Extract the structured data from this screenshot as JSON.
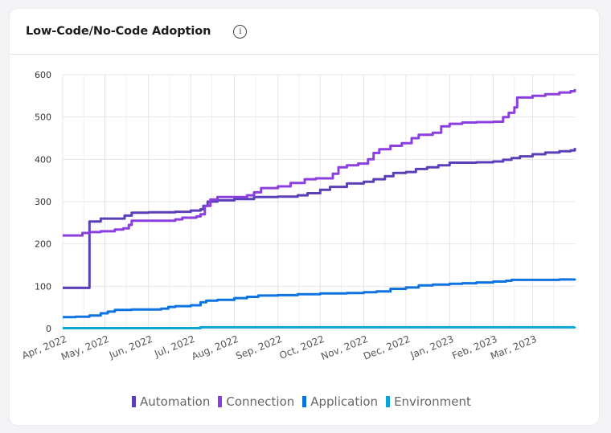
{
  "card": {
    "title": "Low-Code/No-Code Adoption",
    "info_icon": "info-circle-icon"
  },
  "chart_data": {
    "type": "line",
    "step": true,
    "x_start": "2022-04-01",
    "x_end": "2023-03-31",
    "x_tick_labels": [
      "Apr, 2022",
      "May, 2022",
      "Jun, 2022",
      "Jul, 2022",
      "Aug, 2022",
      "Sep, 2022",
      "Oct, 2022",
      "Nov, 2022",
      "Dec, 2022",
      "Jan, 2023",
      "Feb, 2023",
      "Mar, 2023"
    ],
    "ylim": [
      0,
      600
    ],
    "yticks": [
      0,
      100,
      200,
      300,
      400,
      500,
      600
    ],
    "grid": true,
    "legend_position": "bottom",
    "series": [
      {
        "name": "Automation",
        "color": "#5b3fb8",
        "points": [
          [
            "2022-04-01",
            96
          ],
          [
            "2022-04-20",
            96
          ],
          [
            "2022-04-20",
            253
          ],
          [
            "2022-04-28",
            260
          ],
          [
            "2022-05-15",
            267
          ],
          [
            "2022-05-20",
            274
          ],
          [
            "2022-06-01",
            275
          ],
          [
            "2022-06-20",
            276
          ],
          [
            "2022-07-01",
            279
          ],
          [
            "2022-07-08",
            282
          ],
          [
            "2022-07-10",
            290
          ],
          [
            "2022-07-13",
            300
          ],
          [
            "2022-07-20",
            303
          ],
          [
            "2022-08-01",
            306
          ],
          [
            "2022-08-15",
            311
          ],
          [
            "2022-09-01",
            312
          ],
          [
            "2022-09-15",
            315
          ],
          [
            "2022-09-22",
            320
          ],
          [
            "2022-10-01",
            328
          ],
          [
            "2022-10-08",
            335
          ],
          [
            "2022-10-20",
            343
          ],
          [
            "2022-11-01",
            347
          ],
          [
            "2022-11-08",
            353
          ],
          [
            "2022-11-16",
            360
          ],
          [
            "2022-11-22",
            368
          ],
          [
            "2022-12-01",
            370
          ],
          [
            "2022-12-08",
            377
          ],
          [
            "2022-12-16",
            381
          ],
          [
            "2022-12-24",
            386
          ],
          [
            "2023-01-01",
            392
          ],
          [
            "2023-01-20",
            393
          ],
          [
            "2023-02-01",
            395
          ],
          [
            "2023-02-08",
            399
          ],
          [
            "2023-02-14",
            403
          ],
          [
            "2023-02-20",
            407
          ],
          [
            "2023-03-01",
            412
          ],
          [
            "2023-03-10",
            416
          ],
          [
            "2023-03-20",
            419
          ],
          [
            "2023-03-28",
            421
          ],
          [
            "2023-03-31",
            427
          ]
        ]
      },
      {
        "name": "Connection",
        "color": "#8b3fe0",
        "points": [
          [
            "2022-04-01",
            220
          ],
          [
            "2022-04-13",
            220
          ],
          [
            "2022-04-15",
            226
          ],
          [
            "2022-04-20",
            228
          ],
          [
            "2022-04-28",
            230
          ],
          [
            "2022-05-08",
            234
          ],
          [
            "2022-05-14",
            237
          ],
          [
            "2022-05-18",
            245
          ],
          [
            "2022-05-20",
            255
          ],
          [
            "2022-06-15",
            255
          ],
          [
            "2022-06-20",
            258
          ],
          [
            "2022-06-25",
            262
          ],
          [
            "2022-07-05",
            265
          ],
          [
            "2022-07-08",
            270
          ],
          [
            "2022-07-11",
            290
          ],
          [
            "2022-07-15",
            305
          ],
          [
            "2022-07-20",
            311
          ],
          [
            "2022-08-10",
            315
          ],
          [
            "2022-08-15",
            322
          ],
          [
            "2022-08-20",
            332
          ],
          [
            "2022-09-01",
            336
          ],
          [
            "2022-09-10",
            344
          ],
          [
            "2022-09-20",
            353
          ],
          [
            "2022-09-28",
            355
          ],
          [
            "2022-10-10",
            366
          ],
          [
            "2022-10-14",
            381
          ],
          [
            "2022-10-20",
            386
          ],
          [
            "2022-10-28",
            390
          ],
          [
            "2022-11-04",
            400
          ],
          [
            "2022-11-08",
            415
          ],
          [
            "2022-11-12",
            424
          ],
          [
            "2022-11-20",
            432
          ],
          [
            "2022-11-28",
            438
          ],
          [
            "2022-12-05",
            450
          ],
          [
            "2022-12-10",
            458
          ],
          [
            "2022-12-20",
            463
          ],
          [
            "2022-12-26",
            478
          ],
          [
            "2023-01-01",
            484
          ],
          [
            "2023-01-10",
            487
          ],
          [
            "2023-01-20",
            488
          ],
          [
            "2023-02-01",
            489
          ],
          [
            "2023-02-08",
            500
          ],
          [
            "2023-02-12",
            510
          ],
          [
            "2023-02-16",
            523
          ],
          [
            "2023-02-18",
            546
          ],
          [
            "2023-03-01",
            550
          ],
          [
            "2023-03-10",
            554
          ],
          [
            "2023-03-20",
            558
          ],
          [
            "2023-03-28",
            561
          ],
          [
            "2023-03-31",
            566
          ]
        ]
      },
      {
        "name": "Application",
        "color": "#0d73e0",
        "points": [
          [
            "2022-04-01",
            27
          ],
          [
            "2022-04-10",
            28
          ],
          [
            "2022-04-20",
            31
          ],
          [
            "2022-04-28",
            36
          ],
          [
            "2022-05-03",
            40
          ],
          [
            "2022-05-08",
            44
          ],
          [
            "2022-05-20",
            45
          ],
          [
            "2022-06-10",
            47
          ],
          [
            "2022-06-15",
            51
          ],
          [
            "2022-06-20",
            53
          ],
          [
            "2022-07-01",
            55
          ],
          [
            "2022-07-08",
            62
          ],
          [
            "2022-07-12",
            66
          ],
          [
            "2022-07-20",
            68
          ],
          [
            "2022-08-01",
            72
          ],
          [
            "2022-08-10",
            75
          ],
          [
            "2022-08-18",
            78
          ],
          [
            "2022-09-01",
            79
          ],
          [
            "2022-09-15",
            81
          ],
          [
            "2022-10-01",
            83
          ],
          [
            "2022-10-20",
            84
          ],
          [
            "2022-11-01",
            86
          ],
          [
            "2022-11-10",
            88
          ],
          [
            "2022-11-20",
            94
          ],
          [
            "2022-12-01",
            97
          ],
          [
            "2022-12-10",
            102
          ],
          [
            "2022-12-20",
            104
          ],
          [
            "2023-01-01",
            106
          ],
          [
            "2023-01-10",
            107
          ],
          [
            "2023-01-20",
            109
          ],
          [
            "2023-02-01",
            111
          ],
          [
            "2023-02-10",
            113
          ],
          [
            "2023-02-14",
            115
          ],
          [
            "2023-03-01",
            115
          ],
          [
            "2023-03-20",
            116
          ],
          [
            "2023-03-31",
            118
          ]
        ]
      },
      {
        "name": "Environment",
        "color": "#0ba5d8",
        "points": [
          [
            "2022-04-01",
            1
          ],
          [
            "2022-07-08",
            1
          ],
          [
            "2022-07-08",
            3
          ],
          [
            "2023-03-31",
            4
          ]
        ]
      }
    ]
  }
}
